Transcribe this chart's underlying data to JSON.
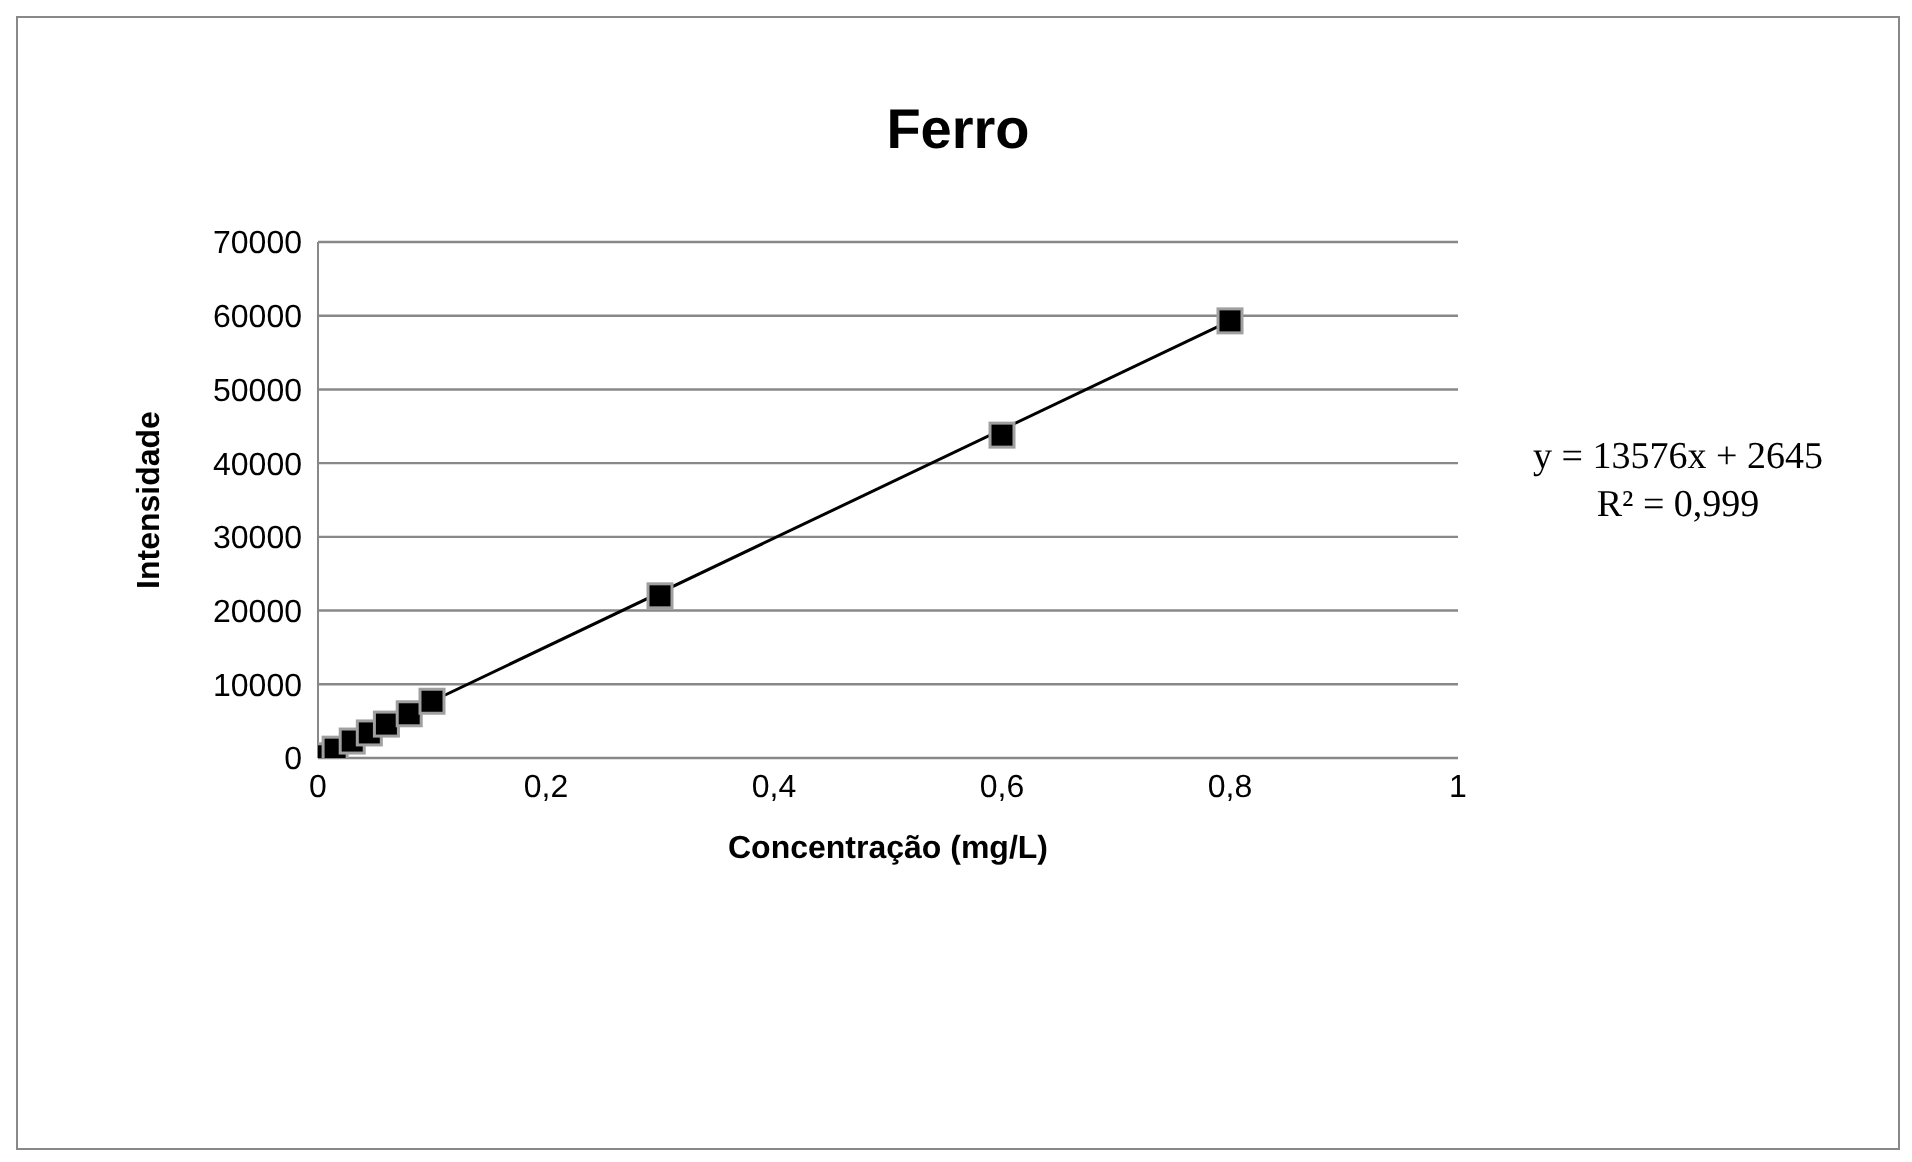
{
  "chart_data": {
    "type": "scatter",
    "title": "Ferro",
    "xlabel": "Concentração (mg/L)",
    "ylabel": "Intensidade",
    "xlim": [
      0,
      1
    ],
    "xticks": [
      {
        "value": 0,
        "label": "0"
      },
      {
        "value": 0.2,
        "label": "0,2"
      },
      {
        "value": 0.4,
        "label": "0,4"
      },
      {
        "value": 0.6,
        "label": "0,6"
      },
      {
        "value": 0.8,
        "label": "0,8"
      },
      {
        "value": 1,
        "label": "1"
      }
    ],
    "ylim": [
      0,
      70000
    ],
    "yticks": [
      0,
      10000,
      20000,
      30000,
      40000,
      50000,
      60000,
      70000
    ],
    "grid": "y",
    "marker": "square",
    "annotations": [
      "y = 13576x + 2645",
      "R² = 0,999"
    ],
    "series": [
      {
        "color": "#000000",
        "x": [
          0,
          0.015,
          0.03,
          0.045,
          0.06,
          0.08,
          0.1,
          0.3,
          0.6,
          0.8
        ],
        "values": [
          300,
          1200,
          2300,
          3400,
          4600,
          6000,
          7700,
          22000,
          43800,
          59300
        ]
      },
      {
        "type": "line",
        "color": "#000000",
        "marker": "none",
        "x": [
          0.1,
          0.8
        ],
        "values": [
          7700,
          59300
        ]
      }
    ]
  }
}
